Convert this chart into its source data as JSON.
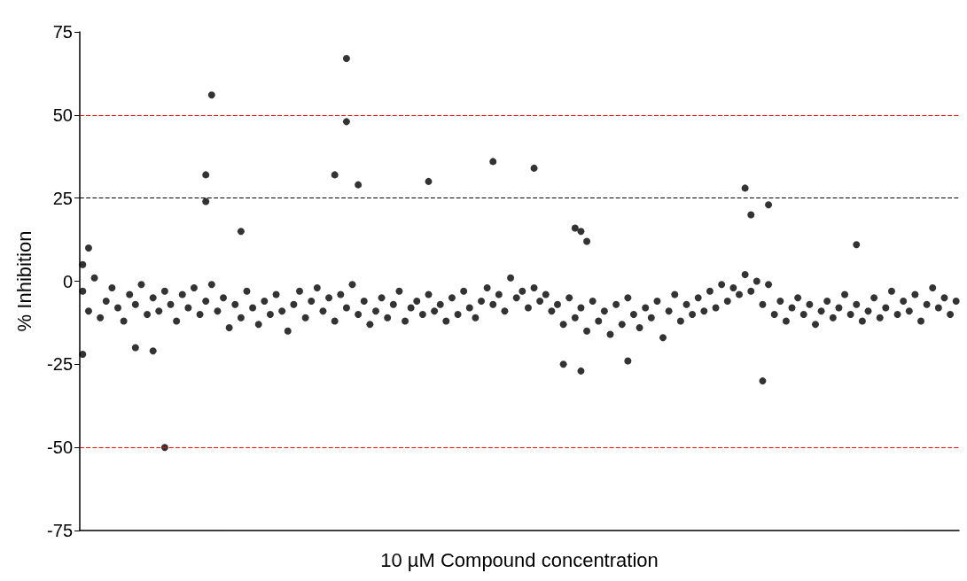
{
  "chart_data": {
    "type": "scatter",
    "xlabel": "10 µM Compound concentration",
    "ylabel": "% Inhibition",
    "categories": [
      null,
      null,
      null,
      null,
      null,
      null,
      null,
      null,
      null,
      null,
      null,
      null,
      null,
      null,
      null,
      null,
      null,
      null,
      null,
      null,
      null,
      null,
      null,
      null,
      null,
      null,
      null,
      null,
      null,
      null,
      null,
      null,
      null,
      null,
      null,
      null,
      null,
      null,
      null,
      null,
      null,
      null,
      null,
      null,
      null,
      null,
      null,
      null,
      null,
      null,
      null,
      null,
      null,
      null,
      null,
      null,
      null,
      null,
      null,
      null,
      null,
      null,
      null,
      null,
      null,
      null,
      null,
      null,
      null,
      null,
      null,
      null,
      null,
      null,
      null,
      null,
      null,
      null,
      null,
      null,
      null,
      null,
      null,
      null,
      null,
      null,
      null,
      null,
      null,
      null,
      null,
      null,
      null,
      null,
      null,
      null,
      null,
      null,
      null,
      null,
      null,
      null,
      null,
      null,
      null,
      null,
      null,
      null,
      null,
      null,
      null,
      null,
      null,
      null,
      null,
      null,
      null,
      null,
      null,
      null,
      null,
      null,
      null,
      null,
      null,
      null,
      null,
      null,
      null,
      null,
      null,
      null,
      null,
      null,
      null,
      null,
      null,
      null,
      null,
      null,
      null,
      null,
      null,
      null,
      null,
      null,
      null,
      null,
      null,
      null
    ],
    "series": [
      {
        "color": "#000000",
        "values": [
          -3,
          -9,
          1,
          -11,
          -6,
          -2,
          -8,
          -12,
          -4,
          -7,
          -1,
          -10,
          -5,
          -9,
          -3,
          -7,
          -12,
          -4,
          -8,
          -2,
          -10,
          -6,
          -1,
          -9,
          -5,
          -14,
          -7,
          -11,
          -3,
          -8,
          -13,
          -6,
          -10,
          -4,
          -9,
          -15,
          -7,
          -3,
          -11,
          -6,
          -2,
          -9,
          -5,
          -12,
          -4,
          -8,
          -1,
          -10,
          -6,
          -13,
          -9,
          -5,
          -11,
          -7,
          -3,
          -12,
          -8,
          -6,
          -10,
          -4,
          -9,
          -7,
          -12,
          -5,
          -10,
          -3,
          -8,
          -11,
          -6,
          -2,
          -7,
          -4,
          -9,
          1,
          -5,
          -3,
          -8,
          -2,
          -6,
          -4,
          -9,
          -7,
          -13,
          -5,
          -11,
          -8,
          -15,
          -6,
          -12,
          -9,
          -16,
          -7,
          -13,
          -5,
          -10,
          -14,
          -8,
          -11,
          -6,
          -17,
          -9,
          -4,
          -12,
          -7,
          -10,
          -5,
          -9,
          -3,
          -8,
          -1,
          -6,
          -2,
          -4,
          2,
          -3,
          0,
          -7,
          -1,
          -10,
          -6,
          -12,
          -8,
          -5,
          -10,
          -7,
          -13,
          -9,
          -6,
          -11,
          -8,
          -4,
          -10,
          -7,
          -12,
          -9,
          -5,
          -11,
          -8,
          -3,
          -10,
          -6,
          -9,
          -4,
          -12,
          -7,
          -2,
          -8,
          -5,
          -10,
          -6
        ]
      },
      {
        "color": "#000000",
        "values": [
          5,
          10,
          null,
          null,
          null,
          null,
          null,
          null,
          null,
          null,
          null,
          null,
          null,
          null,
          null,
          null,
          null,
          null,
          null,
          null,
          null,
          32,
          56,
          null,
          null,
          null,
          null,
          15,
          null,
          null,
          null,
          null,
          null,
          null,
          null,
          null,
          null,
          null,
          null,
          null,
          null,
          null,
          null,
          32,
          null,
          67,
          null,
          29,
          null,
          null,
          null,
          null,
          null,
          null,
          null,
          null,
          null,
          null,
          null,
          30,
          null,
          null,
          null,
          null,
          null,
          null,
          null,
          null,
          null,
          null,
          36,
          null,
          null,
          null,
          null,
          null,
          null,
          34,
          null,
          null,
          null,
          null,
          null,
          null,
          16,
          15,
          12,
          null,
          null,
          null,
          null,
          null,
          null,
          null,
          null,
          null,
          null,
          null,
          null,
          null,
          null,
          null,
          null,
          null,
          null,
          null,
          null,
          null,
          null,
          null,
          null,
          null,
          null,
          28,
          20,
          null,
          null,
          23,
          null,
          null,
          null,
          null,
          null,
          null,
          null,
          null,
          null,
          null,
          null,
          null,
          null,
          null,
          11,
          null,
          null,
          null,
          null,
          null,
          null,
          null,
          null,
          null,
          null,
          null,
          null,
          null,
          null,
          null,
          null,
          null
        ]
      },
      {
        "color": "#000000",
        "values": [
          -22,
          null,
          null,
          null,
          null,
          null,
          null,
          null,
          null,
          -20,
          null,
          null,
          -21,
          null,
          -50,
          null,
          null,
          null,
          null,
          null,
          null,
          24,
          null,
          null,
          null,
          null,
          null,
          null,
          null,
          null,
          null,
          null,
          null,
          null,
          null,
          null,
          null,
          null,
          null,
          null,
          null,
          null,
          null,
          null,
          null,
          48,
          null,
          null,
          null,
          null,
          null,
          null,
          null,
          null,
          null,
          null,
          null,
          null,
          null,
          null,
          null,
          null,
          null,
          null,
          null,
          null,
          null,
          null,
          null,
          null,
          null,
          null,
          null,
          null,
          null,
          null,
          null,
          null,
          null,
          null,
          null,
          null,
          -25,
          null,
          null,
          -27,
          null,
          null,
          null,
          null,
          null,
          null,
          null,
          -24,
          null,
          null,
          null,
          null,
          null,
          null,
          null,
          null,
          null,
          null,
          null,
          null,
          null,
          null,
          null,
          null,
          null,
          null,
          null,
          null,
          null,
          null,
          -30,
          null,
          null,
          null,
          null,
          null,
          null,
          null,
          null,
          null,
          null,
          null,
          null,
          null,
          null,
          null,
          null,
          null,
          null,
          null,
          null,
          null,
          null,
          null,
          null,
          null,
          null,
          null,
          null,
          null,
          null,
          null,
          null,
          null
        ]
      }
    ],
    "ylim": [
      -75,
      75
    ],
    "yticks": [
      -75,
      -50,
      -25,
      0,
      25,
      50,
      75
    ],
    "tick_labels": "y",
    "marker": "circle",
    "ref_lines": [
      {
        "axis": "y",
        "value": 50,
        "color": "#ff0000",
        "line_style": "dashed"
      },
      {
        "axis": "y",
        "value": 25,
        "color": "#000000",
        "line_style": "dashed"
      },
      {
        "axis": "y",
        "value": -50,
        "color": "#ff0000",
        "line_style": "dashed"
      }
    ]
  }
}
